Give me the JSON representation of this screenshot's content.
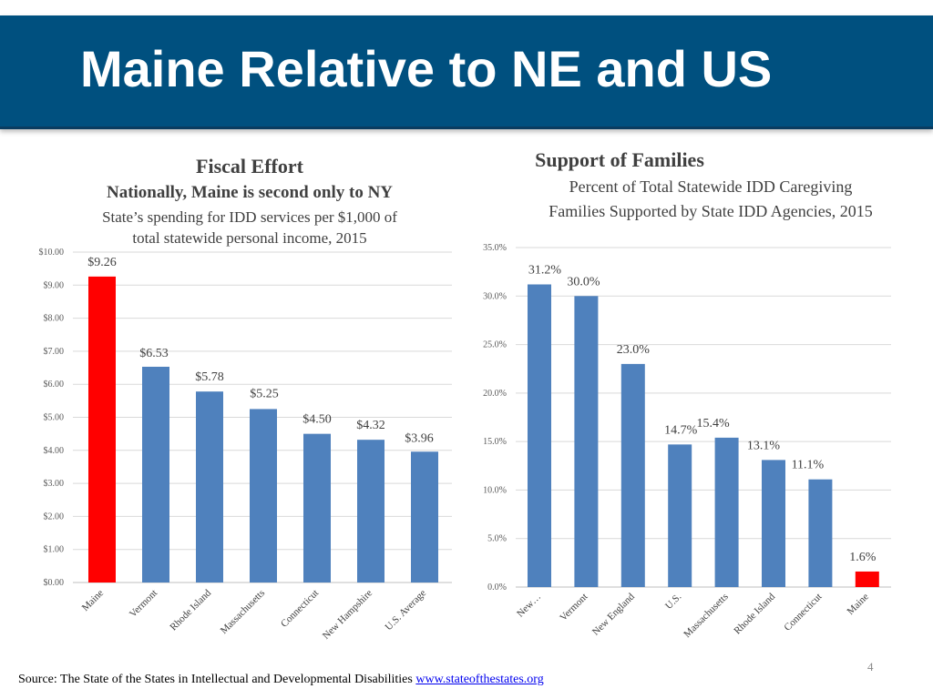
{
  "slide": {
    "title": "Maine Relative to NE and US",
    "page_number": "4",
    "source_text": "Source: The State of the States in Intellectual and Developmental Disabilities ",
    "source_link": "www.stateofthestates.org"
  },
  "colors": {
    "banner": "#00507f",
    "bar": "#4f81bd",
    "highlight": "#ff0000"
  },
  "left_titles": {
    "title": "Fiscal Effort",
    "subtitle": "Nationally, Maine is second only to NY",
    "desc_line1": "State’s spending for IDD services per $1,000 of",
    "desc_line2": "total statewide personal income, 2015"
  },
  "right_titles": {
    "title": "Support of Families",
    "desc_line1": "Percent of Total Statewide IDD Caregiving",
    "desc_line2": "Families Supported by State IDD Agencies, 2015"
  },
  "chart_data": [
    {
      "type": "bar",
      "title": "Fiscal Effort",
      "categories": [
        "Maine",
        "Vermont",
        "Rhode Island",
        "Massachusetts",
        "Connecticut",
        "New Hampshire",
        "U.S. Average"
      ],
      "values": [
        9.26,
        6.53,
        5.78,
        5.25,
        4.5,
        4.32,
        3.96
      ],
      "labels": [
        "$9.26",
        "$6.53",
        "$5.78",
        "$5.25",
        "$4.50",
        "$4.32",
        "$3.96"
      ],
      "highlight": [
        "Maine"
      ],
      "ylim": [
        0,
        10
      ],
      "yticks": [
        "$0.00",
        "$1.00",
        "$2.00",
        "$3.00",
        "$4.00",
        "$5.00",
        "$6.00",
        "$7.00",
        "$8.00",
        "$9.00",
        "$10.00"
      ],
      "grid": true
    },
    {
      "type": "bar",
      "title": "Support of Families",
      "categories": [
        "New…",
        "Vermont",
        "New England",
        "U.S.",
        "Massachusetts",
        "Rhode Island",
        "Connecticut",
        "Maine"
      ],
      "values": [
        31.2,
        30.0,
        23.0,
        14.7,
        15.4,
        13.1,
        11.1,
        1.6
      ],
      "labels": [
        "31.2%",
        "30.0%",
        "23.0%",
        "14.7%",
        "15.4%",
        "13.1%",
        "11.1%",
        "1.6%"
      ],
      "highlight": [
        "Maine"
      ],
      "ylim": [
        0,
        35
      ],
      "yticks": [
        "0.0%",
        "5.0%",
        "10.0%",
        "15.0%",
        "20.0%",
        "25.0%",
        "30.0%",
        "35.0%"
      ],
      "grid": true
    }
  ]
}
